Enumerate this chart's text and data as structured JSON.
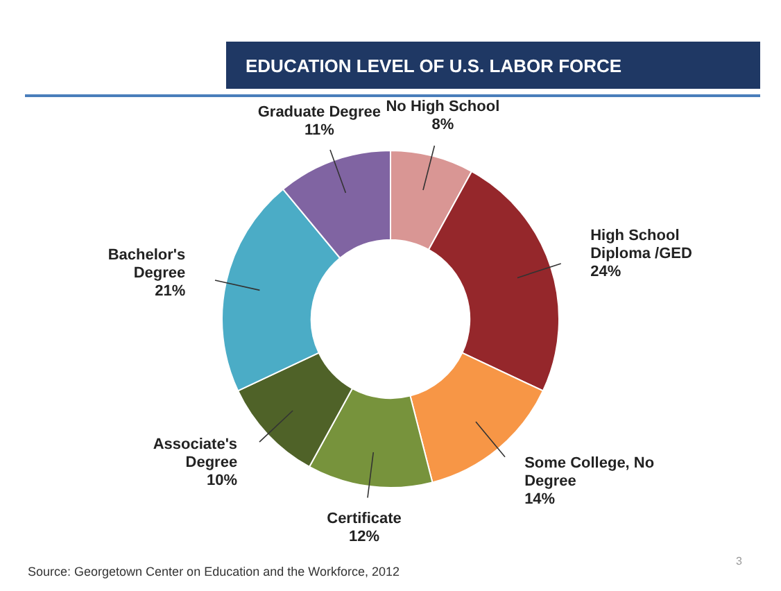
{
  "chart_data": {
    "type": "donut",
    "title": "EDUCATION LEVEL OF U.S. LABOR FORCE",
    "categories": [
      "No High School",
      "High School Diploma /GED",
      "Some College, No Degree",
      "Certificate",
      "Associate's Degree",
      "Bachelor's Degree",
      "Graduate Degree"
    ],
    "values": [
      8,
      24,
      14,
      12,
      10,
      21,
      11
    ],
    "colors": [
      "#d99694",
      "#95272b",
      "#f79646",
      "#77933c",
      "#4f6228",
      "#4bacc6",
      "#8064a2"
    ],
    "value_labels": [
      "8%",
      "24%",
      "14%",
      "12%",
      "10%",
      "21%",
      "11%"
    ],
    "legend": false,
    "annotations": [
      "Source: Georgetown Center on Education and the Workforce, 2012",
      "3"
    ]
  }
}
